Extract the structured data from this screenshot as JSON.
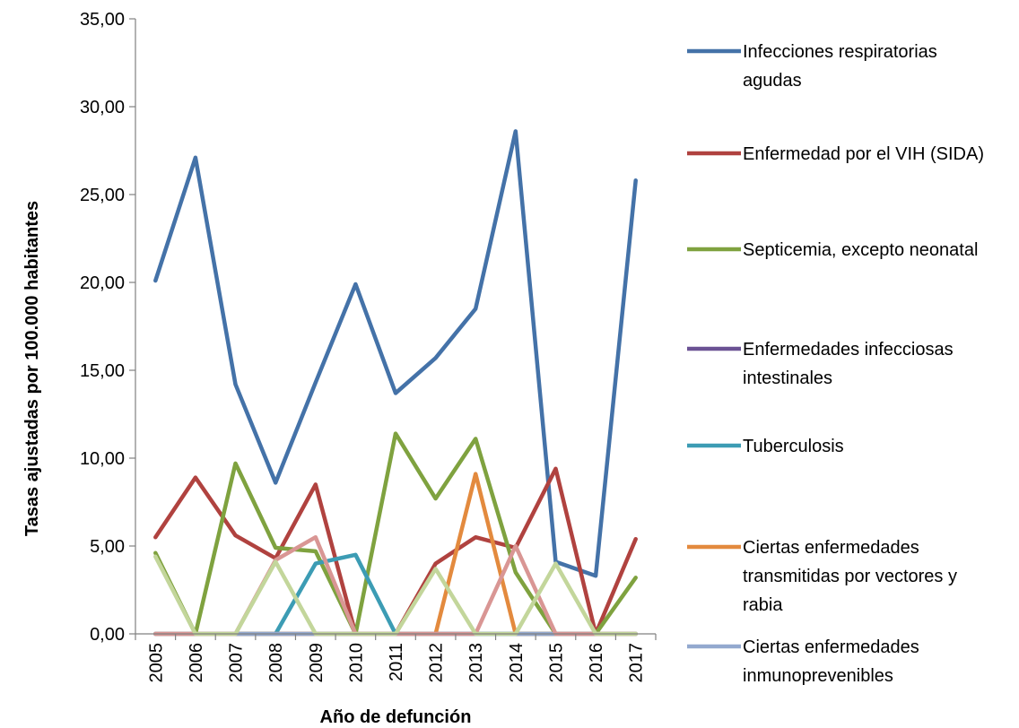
{
  "chart_data": {
    "type": "line",
    "xlabel": "Año de defunción",
    "ylabel": "Tasas ajustadas por 100.000 habitantes",
    "x": [
      "2005",
      "2006",
      "2007",
      "2008",
      "2009",
      "2010",
      "2011",
      "2012",
      "2013",
      "2014",
      "2015",
      "2016",
      "2017"
    ],
    "ylim": [
      0,
      35
    ],
    "yticks": [
      "0,00",
      "5,00",
      "10,00",
      "15,00",
      "20,00",
      "25,00",
      "30,00",
      "35,00"
    ],
    "grid": false,
    "legend_position": "right",
    "series": [
      {
        "name": "Infecciones respiratorias agudas",
        "legend_lines": [
          "Infecciones respiratorias",
          "agudas"
        ],
        "color": "#4472A8",
        "values": [
          20.1,
          27.1,
          14.2,
          8.6,
          14.3,
          19.9,
          13.7,
          15.7,
          18.5,
          28.6,
          4.1,
          3.3,
          25.8
        ]
      },
      {
        "name": "Enfermedad por el VIH (SIDA)",
        "legend_lines": [
          "Enfermedad por el VIH (SIDA)"
        ],
        "color": "#B0423F",
        "values": [
          5.5,
          8.9,
          5.6,
          4.3,
          8.5,
          0.0,
          0.0,
          4.0,
          5.5,
          4.9,
          9.4,
          0.0,
          5.4
        ]
      },
      {
        "name": "Septicemia, excepto neonatal",
        "legend_lines": [
          "Septicemia, excepto neonatal"
        ],
        "color": "#7FA23F",
        "values": [
          4.6,
          0.0,
          9.7,
          4.9,
          4.7,
          0.0,
          11.4,
          7.7,
          11.1,
          3.5,
          0.0,
          0.0,
          3.2
        ]
      },
      {
        "name": "Enfermedades infecciosas intestinales",
        "legend_lines": [
          "Enfermedades infecciosas",
          "intestinales"
        ],
        "color": "#6B5294",
        "values": [
          0,
          0,
          0,
          0,
          0,
          0,
          0,
          0,
          0,
          0,
          0,
          0,
          0
        ]
      },
      {
        "name": "Tuberculosis",
        "legend_lines": [
          "Tuberculosis"
        ],
        "color": "#3C9CB4",
        "values": [
          0.0,
          0.0,
          0.0,
          0.0,
          4.0,
          4.5,
          0.0,
          0.0,
          0.0,
          0.0,
          0.0,
          0.0,
          0.0
        ]
      },
      {
        "name": "Ciertas enfermedades transmitidas por vectores y rabia",
        "legend_lines": [
          "Ciertas enfermedades",
          "transmitidas por vectores y",
          "rabia"
        ],
        "color": "#E38A3E",
        "values": [
          0.0,
          0.0,
          0.0,
          0.0,
          0.0,
          0.0,
          0.0,
          0.0,
          9.1,
          0.0,
          0.0,
          0.0,
          0.0
        ]
      },
      {
        "name": "Ciertas enfermedades inmunoprevenibles",
        "legend_lines": [
          "Ciertas enfermedades",
          "inmunoprevenibles"
        ],
        "color": "#93A9CF",
        "values": [
          0,
          0,
          0,
          0,
          0,
          0,
          0,
          0,
          0,
          0,
          0,
          0,
          0
        ]
      },
      {
        "name": "",
        "legend_lines": [],
        "color": "#D99694",
        "values": [
          0.0,
          0.0,
          0.0,
          4.2,
          5.5,
          0.0,
          0.0,
          0.0,
          0.0,
          5.0,
          0.0,
          0.0,
          0.0
        ]
      },
      {
        "name": "",
        "legend_lines": [],
        "color": "#C3D69B",
        "values": [
          4.4,
          0.0,
          0.0,
          4.1,
          0.0,
          0.0,
          0.0,
          3.7,
          0.0,
          0.0,
          4.0,
          0.0,
          0.0
        ]
      }
    ]
  }
}
